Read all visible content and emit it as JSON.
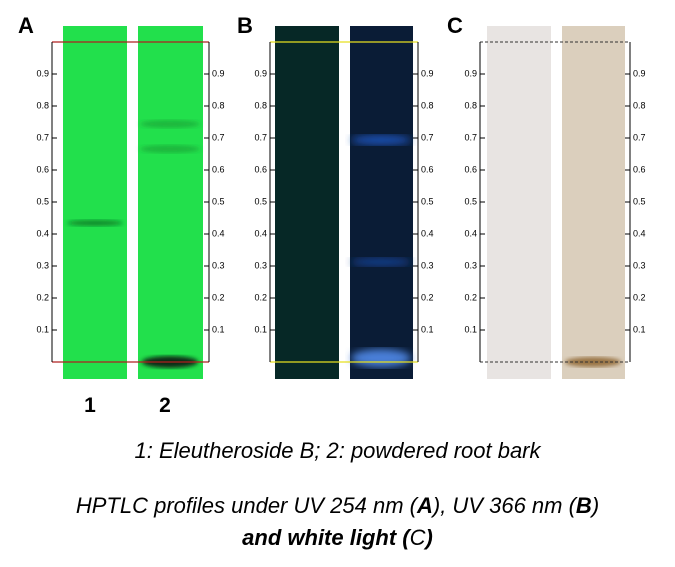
{
  "panels": [
    {
      "label": "A"
    },
    {
      "label": "B"
    },
    {
      "label": "C"
    }
  ],
  "rf_ticks": [
    0.1,
    0.2,
    0.3,
    0.4,
    0.5,
    0.6,
    0.7,
    0.8,
    0.9
  ],
  "lane_labels": [
    "1",
    "2"
  ],
  "caption_line1": "1: Eleutheroside B; 2: powdered root bark",
  "caption_line2": [
    "HPTLC profiles under UV 254 nm (",
    "A",
    "), UV 366 nm (",
    "B",
    ")",
    " and white light (",
    "C",
    ")"
  ]
}
